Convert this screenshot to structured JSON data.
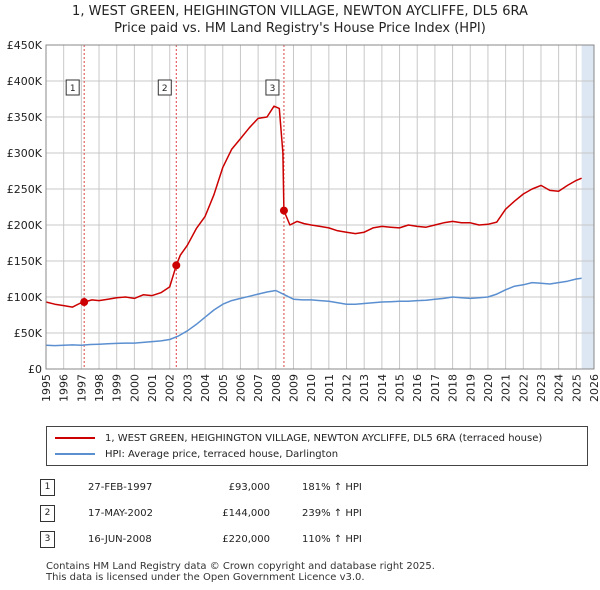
{
  "header": {
    "title_line1": "1, WEST GREEN, HEIGHINGTON VILLAGE, NEWTON AYCLIFFE, DL5 6RA",
    "title_line2": "Price paid vs. HM Land Registry's House Price Index (HPI)"
  },
  "colors": {
    "property": "#cc0000",
    "hpi": "#5b8fd0",
    "band": "#dde6f3",
    "grid": "#c8c8c8"
  },
  "chart_data": {
    "type": "line",
    "title": "Price paid vs. HM Land Registry's House Price Index (HPI)",
    "xlabel": "",
    "ylabel": "",
    "xlim": [
      1995,
      2026
    ],
    "ylim": [
      0,
      450000
    ],
    "y_ticks": [
      {
        "value": 0,
        "label": "£0"
      },
      {
        "value": 50000,
        "label": "£50K"
      },
      {
        "value": 100000,
        "label": "£100K"
      },
      {
        "value": 150000,
        "label": "£150K"
      },
      {
        "value": 200000,
        "label": "£200K"
      },
      {
        "value": 250000,
        "label": "£250K"
      },
      {
        "value": 300000,
        "label": "£300K"
      },
      {
        "value": 350000,
        "label": "£350K"
      },
      {
        "value": 400000,
        "label": "£400K"
      },
      {
        "value": 450000,
        "label": "£450K"
      }
    ],
    "x_ticks": [
      "1995",
      "1996",
      "1997",
      "1998",
      "1999",
      "2000",
      "2001",
      "2002",
      "2003",
      "2004",
      "2005",
      "2006",
      "2007",
      "2008",
      "2009",
      "2010",
      "2011",
      "2012",
      "2013",
      "2014",
      "2015",
      "2016",
      "2017",
      "2018",
      "2019",
      "2020",
      "2021",
      "2022",
      "2023",
      "2024",
      "2025",
      "2026"
    ],
    "series": [
      {
        "name": "1, WEST GREEN, HEIGHINGTON VILLAGE, NEWTON AYCLIFFE, DL5 6RA (terraced house)",
        "color": "#cc0000",
        "x": [
          1995.0,
          1995.5,
          1996.0,
          1996.5,
          1996.9,
          1997.16,
          1997.6,
          1998.0,
          1998.5,
          1999.0,
          1999.5,
          2000.0,
          2000.5,
          2001.0,
          2001.5,
          2002.0,
          2002.37,
          2002.6,
          2003.0,
          2003.5,
          2004.0,
          2004.5,
          2005.0,
          2005.5,
          2006.0,
          2006.5,
          2007.0,
          2007.5,
          2007.9,
          2008.2,
          2008.4,
          2008.46,
          2008.8,
          2009.2,
          2009.6,
          2010.0,
          2010.5,
          2011.0,
          2011.5,
          2012.0,
          2012.5,
          2013.0,
          2013.5,
          2014.0,
          2014.5,
          2015.0,
          2015.5,
          2016.0,
          2016.5,
          2017.0,
          2017.5,
          2018.0,
          2018.5,
          2019.0,
          2019.5,
          2020.0,
          2020.5,
          2021.0,
          2021.5,
          2022.0,
          2022.5,
          2023.0,
          2023.5,
          2024.0,
          2024.5,
          2025.0,
          2025.3
        ],
        "values": [
          93000,
          90000,
          88000,
          86000,
          91000,
          93000,
          96000,
          95000,
          97000,
          99000,
          100000,
          98000,
          103000,
          102000,
          106000,
          114000,
          144000,
          158000,
          172000,
          195000,
          212000,
          242000,
          280000,
          305000,
          320000,
          335000,
          348000,
          350000,
          365000,
          362000,
          300000,
          220000,
          200000,
          205000,
          202000,
          200000,
          198000,
          196000,
          192000,
          190000,
          188000,
          190000,
          196000,
          198000,
          197000,
          196000,
          200000,
          198000,
          197000,
          200000,
          203000,
          205000,
          203000,
          203000,
          200000,
          201000,
          204000,
          222000,
          233000,
          243000,
          250000,
          255000,
          248000,
          247000,
          255000,
          262000,
          265000
        ]
      },
      {
        "name": "HPI: Average price, terraced house, Darlington",
        "color": "#5b8fd0",
        "x": [
          1995.0,
          1995.5,
          1996.0,
          1996.5,
          1997.0,
          1997.5,
          1998.0,
          1998.5,
          1999.0,
          1999.5,
          2000.0,
          2000.5,
          2001.0,
          2001.5,
          2002.0,
          2002.5,
          2003.0,
          2003.5,
          2004.0,
          2004.5,
          2005.0,
          2005.5,
          2006.0,
          2006.5,
          2007.0,
          2007.5,
          2008.0,
          2008.5,
          2009.0,
          2009.5,
          2010.0,
          2010.5,
          2011.0,
          2011.5,
          2012.0,
          2012.5,
          2013.0,
          2013.5,
          2014.0,
          2014.5,
          2015.0,
          2015.5,
          2016.0,
          2016.5,
          2017.0,
          2017.5,
          2018.0,
          2018.5,
          2019.0,
          2019.5,
          2020.0,
          2020.5,
          2021.0,
          2021.5,
          2022.0,
          2022.5,
          2023.0,
          2023.5,
          2024.0,
          2024.5,
          2025.0,
          2025.3
        ],
        "values": [
          33000,
          32500,
          33000,
          33500,
          33000,
          34000,
          34500,
          35000,
          35500,
          36000,
          36000,
          37000,
          38000,
          39000,
          41000,
          46000,
          53000,
          62000,
          72000,
          82000,
          90000,
          95000,
          98000,
          101000,
          104000,
          107000,
          109000,
          103000,
          97000,
          96000,
          96000,
          95000,
          94000,
          92000,
          90000,
          90000,
          91000,
          92000,
          93000,
          93500,
          94000,
          94000,
          95000,
          95500,
          97000,
          98000,
          100000,
          99000,
          98000,
          99000,
          100000,
          104000,
          110000,
          115000,
          117000,
          120000,
          119000,
          118000,
          120000,
          122000,
          125000,
          126000
        ]
      }
    ],
    "sales": [
      {
        "num": "1",
        "x": 1997.16,
        "value": 93000
      },
      {
        "num": "2",
        "x": 2002.37,
        "value": 144000
      },
      {
        "num": "3",
        "x": 2008.46,
        "value": 220000
      }
    ],
    "future_band_start": 2025.3,
    "legend_position": "bottom"
  },
  "legend": {
    "property_label": "1, WEST GREEN, HEIGHINGTON VILLAGE, NEWTON AYCLIFFE, DL5 6RA (terraced house)",
    "hpi_label": "HPI: Average price, terraced house, Darlington"
  },
  "sales_table": [
    {
      "num": "1",
      "date": "27-FEB-1997",
      "price": "£93,000",
      "hpi": "181% ↑ HPI"
    },
    {
      "num": "2",
      "date": "17-MAY-2002",
      "price": "£144,000",
      "hpi": "239% ↑ HPI"
    },
    {
      "num": "3",
      "date": "16-JUN-2008",
      "price": "£220,000",
      "hpi": "110% ↑ HPI"
    }
  ],
  "footer": {
    "line1": "Contains HM Land Registry data © Crown copyright and database right 2025.",
    "line2": "This data is licensed under the Open Government Licence v3.0."
  }
}
